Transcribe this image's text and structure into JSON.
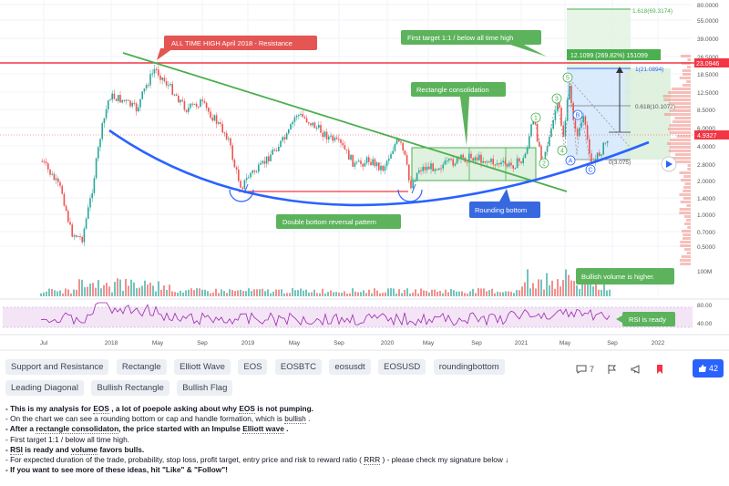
{
  "chart": {
    "price_axis": [
      "80.0000",
      "55.0000",
      "39.0000",
      "26.5000",
      "18.5000",
      "12.5000",
      "8.5000",
      "6.0000",
      "4.0000",
      "2.8000",
      "2.0000",
      "1.4000",
      "1.0000",
      "0.7000",
      "0.5000"
    ],
    "price_current": "4.9327",
    "price_marker_red": "23.0946",
    "volume_axis": "100M",
    "rsi_axis": [
      "80.00",
      "40.00"
    ],
    "time_axis": [
      "Jul",
      "2018",
      "May",
      "Sep",
      "2019",
      "May",
      "Sep",
      "2020",
      "May",
      "Sep",
      "2021",
      "May",
      "Sep",
      "2022"
    ],
    "fib_levels": {
      "top": "1.618(69.3174)",
      "one": "1(21.0894)",
      "mid": "0.618(10.1072)",
      "zero": "0(3.075)"
    },
    "measure_label": "12.1099 (269.82%) 151099",
    "waves": [
      "1",
      "2",
      "3",
      "4",
      "5",
      "A",
      "B",
      "C"
    ],
    "colors": {
      "green": "#4caf50",
      "blue": "#2962ff",
      "red": "#f23645",
      "label_green": "#5cb35c",
      "label_blue": "#3868e0",
      "label_red": "#e45553"
    },
    "annotations": {
      "ath": "ALL TIME HIGH April 2018 - Resistance",
      "first_target": "First target 1:1 / below all time high",
      "rect": "Rectangle consolidation",
      "double_bottom": "Double bottom reversal pattern",
      "rounding": "Rounding bottom",
      "bull_vol": "Bullish volume is higher.",
      "rsi": "RSI is ready"
    }
  },
  "tags": [
    "Support and Resistance",
    "Rectangle",
    "Elliott Wave",
    "EOS",
    "EOSBTC",
    "eosusdt",
    "EOSUSD",
    "roundingbottom",
    "Leading Diagonal",
    "Bullish Rectangle",
    "Bullish Flag"
  ],
  "actions": {
    "comments": "7",
    "likes": "42"
  },
  "description": {
    "l1a": "- This is my analysis for ",
    "l1b": "EOS",
    "l1c": " , a lot of poepole asking about why ",
    "l1d": "EOS",
    "l1e": " is not pumping.",
    "l2a": "- On the chart we can see a rounding bottom or cap and handle formation, which is ",
    "l2b": "bullish",
    "l2c": " .",
    "l3a": "- After a ",
    "l3b": "rectangle consolidaton",
    "l3c": ", the price started with an Impulse ",
    "l3d": "Elliott wave",
    "l3e": " .",
    "l4": "- First target 1:1 / below all time high.",
    "l5a": "- ",
    "l5b": "RSI",
    "l5c": " is ready and ",
    "l5d": "volume",
    "l5e": " favors bulls.",
    "l6a": "- For expected duration of the trade, probability, stop loss, profit target, entry price and risk to reward ratio ( ",
    "l6b": "RRR",
    "l6c": " ) - please check my signature below ↓",
    "l7": "- If you want to see more of these ideas, hit \"Like\" & \"Follow\"!"
  }
}
